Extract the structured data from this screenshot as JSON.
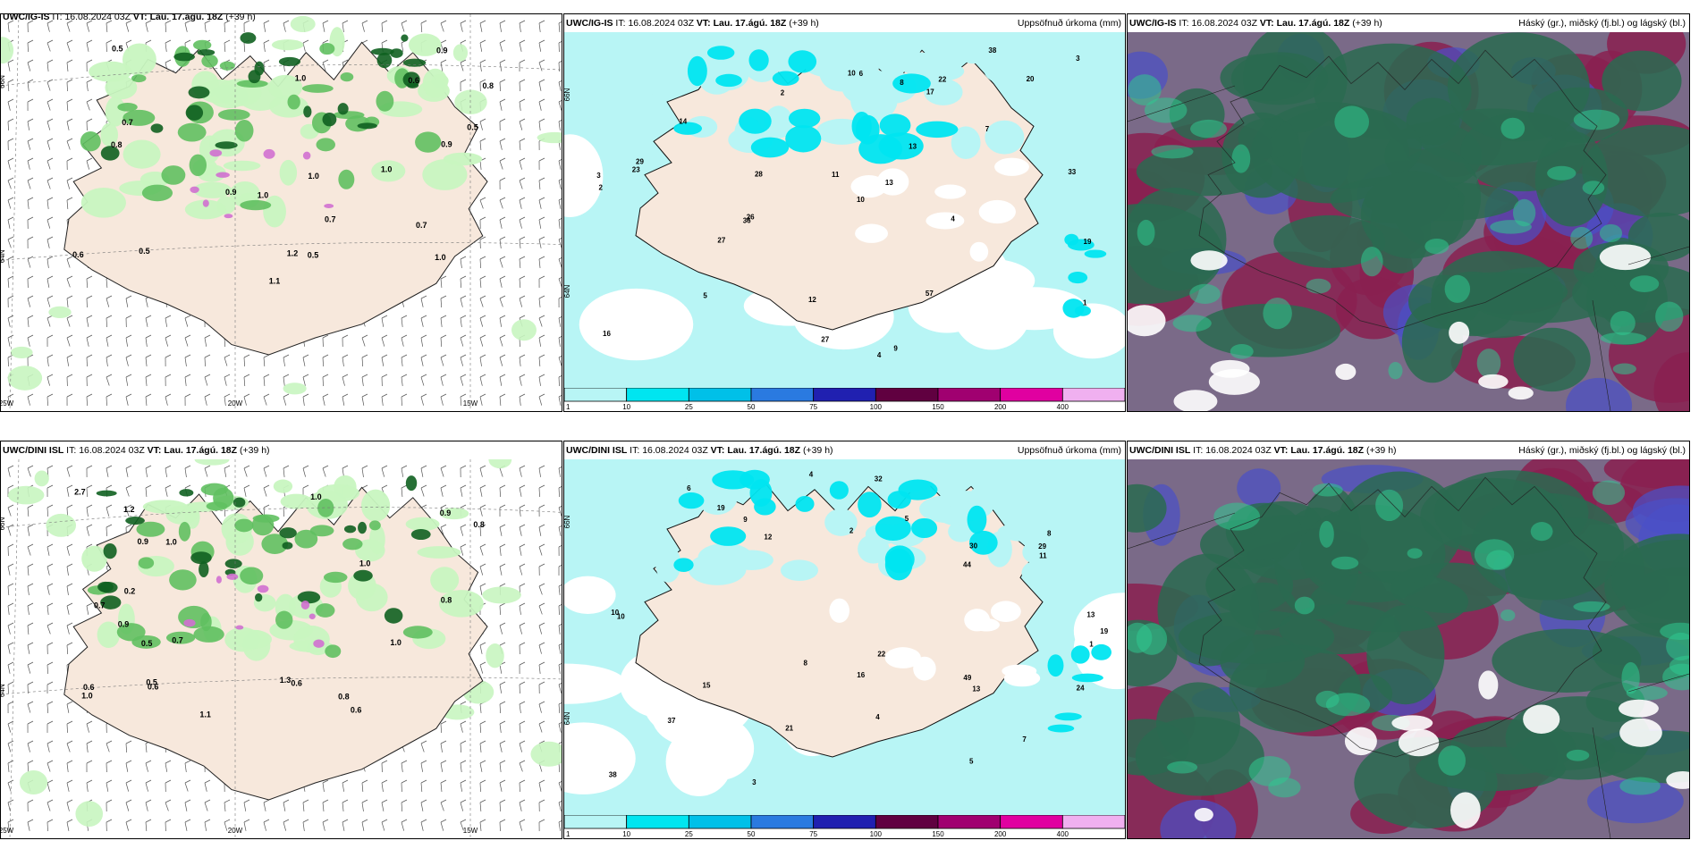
{
  "panels": [
    {
      "id": "ig-wind",
      "model": "UWC/IG-IS",
      "it_label": "IT:",
      "it_value": "16.08.2024 03Z",
      "vt_label": "VT:",
      "vt_value": "Lau. 17.ágú. 18Z",
      "lead": "(+39 h)",
      "subtitle": "",
      "lat_labels": [
        "66N",
        "64N"
      ],
      "lon_labels": [
        "25W",
        "20W",
        "15W"
      ],
      "values": [
        "0.6",
        "0.7",
        "1.2",
        "0.9",
        "0.5",
        "1.0",
        "0.8",
        "1.1",
        "0.7",
        "0.5",
        "0.9",
        "1.0",
        "0.6",
        "1.0",
        "0.5",
        "0.8",
        "0.9",
        "1.0",
        "0.7",
        "0.5",
        "1.0"
      ]
    },
    {
      "id": "ig-precip",
      "model": "UWC/IG-IS",
      "it_label": "IT:",
      "it_value": "16.08.2024 03Z",
      "vt_label": "VT:",
      "vt_value": "Lau. 17.ágú. 18Z",
      "lead": "(+39 h)",
      "subtitle": "Uppsöfnuð úrkoma (mm)",
      "lat_labels": [
        "66N",
        "64N"
      ],
      "values": [
        "4",
        "9",
        "7",
        "2",
        "13",
        "10",
        "14",
        "29",
        "38",
        "36",
        "28",
        "33",
        "23",
        "57",
        "26",
        "20",
        "12",
        "5",
        "3",
        "1",
        "2",
        "4",
        "8",
        "16",
        "27",
        "22",
        "13",
        "10",
        "6",
        "3",
        "27",
        "11",
        "17",
        "19"
      ]
    },
    {
      "id": "ig-cloud",
      "model": "UWC/IG-IS",
      "it_label": "IT:",
      "it_value": "16.08.2024 03Z",
      "vt_label": "VT:",
      "vt_value": "Lau. 17.ágú. 18Z",
      "lead": "(+39 h)",
      "subtitle": "Háský (gr.), miðský (fj.bl.) og lágský (bl.)"
    },
    {
      "id": "dini-wind",
      "model": "UWC/DINI ISL",
      "it_label": "IT:",
      "it_value": "16.08.2024 03Z",
      "vt_label": "VT:",
      "vt_value": "Lau. 17.ágú. 18Z",
      "lead": "(+39 h)",
      "subtitle": "",
      "lat_labels": [
        "66N",
        "64N"
      ],
      "lon_labels": [
        "25W",
        "20W",
        "15W"
      ],
      "values": [
        "0.2",
        "1.0",
        "0.6",
        "0.9",
        "0.6",
        "1.2",
        "0.8",
        "1.0",
        "0.5",
        "0.7",
        "1.3",
        "0.8",
        "0.6",
        "1.1",
        "0.9",
        "0.5",
        "1.0",
        "0.7",
        "0.8",
        "1.0",
        "0.6",
        "0.9",
        "2.7",
        "1.0"
      ]
    },
    {
      "id": "dini-precip",
      "model": "UWC/DINI ISL",
      "it_label": "IT:",
      "it_value": "16.08.2024 03Z",
      "vt_label": "VT:",
      "vt_value": "Lau. 17.ágú. 18Z",
      "lead": "(+39 h)",
      "subtitle": "Uppsöfnuð úrkoma (mm)",
      "lat_labels": [
        "66N",
        "64N"
      ],
      "values": [
        "8",
        "10",
        "4",
        "5",
        "12",
        "13",
        "19",
        "44",
        "49",
        "30",
        "32",
        "38",
        "22",
        "37",
        "15",
        "10",
        "7",
        "5",
        "2",
        "1",
        "4",
        "9",
        "29",
        "21",
        "13",
        "11",
        "8",
        "6",
        "3",
        "19",
        "24",
        "16"
      ]
    },
    {
      "id": "dini-cloud",
      "model": "UWC/DINI ISL",
      "it_label": "IT:",
      "it_value": "16.08.2024 03Z",
      "vt_label": "VT:",
      "vt_value": "Lau. 17.ágú. 18Z",
      "lead": "(+39 h)",
      "subtitle": "Háský (gr.), miðský (fj.bl.) og lágský (bl.)"
    }
  ],
  "precip_legend": {
    "ticks": [
      "1",
      "10",
      "25",
      "50",
      "75",
      "100",
      "150",
      "200",
      "400"
    ],
    "colors": [
      "#b8f5f5",
      "#00e5f0",
      "#00c0e8",
      "#2a7ae0",
      "#2020b0",
      "#600040",
      "#a00070",
      "#e000a0",
      "#f0b0f0"
    ]
  },
  "colors": {
    "land": "#f7e8dc",
    "precip_light": "#b8f5f5",
    "precip_mid": "#00e5f0",
    "wind_light": "#c8f5c0",
    "wind_mid": "#60c060",
    "wind_dark": "#106020",
    "wind_gust": "#d070d0",
    "cloud_high": "#2a6a50",
    "cloud_mid": "#8a2050",
    "cloud_low": "#4a50c8"
  }
}
